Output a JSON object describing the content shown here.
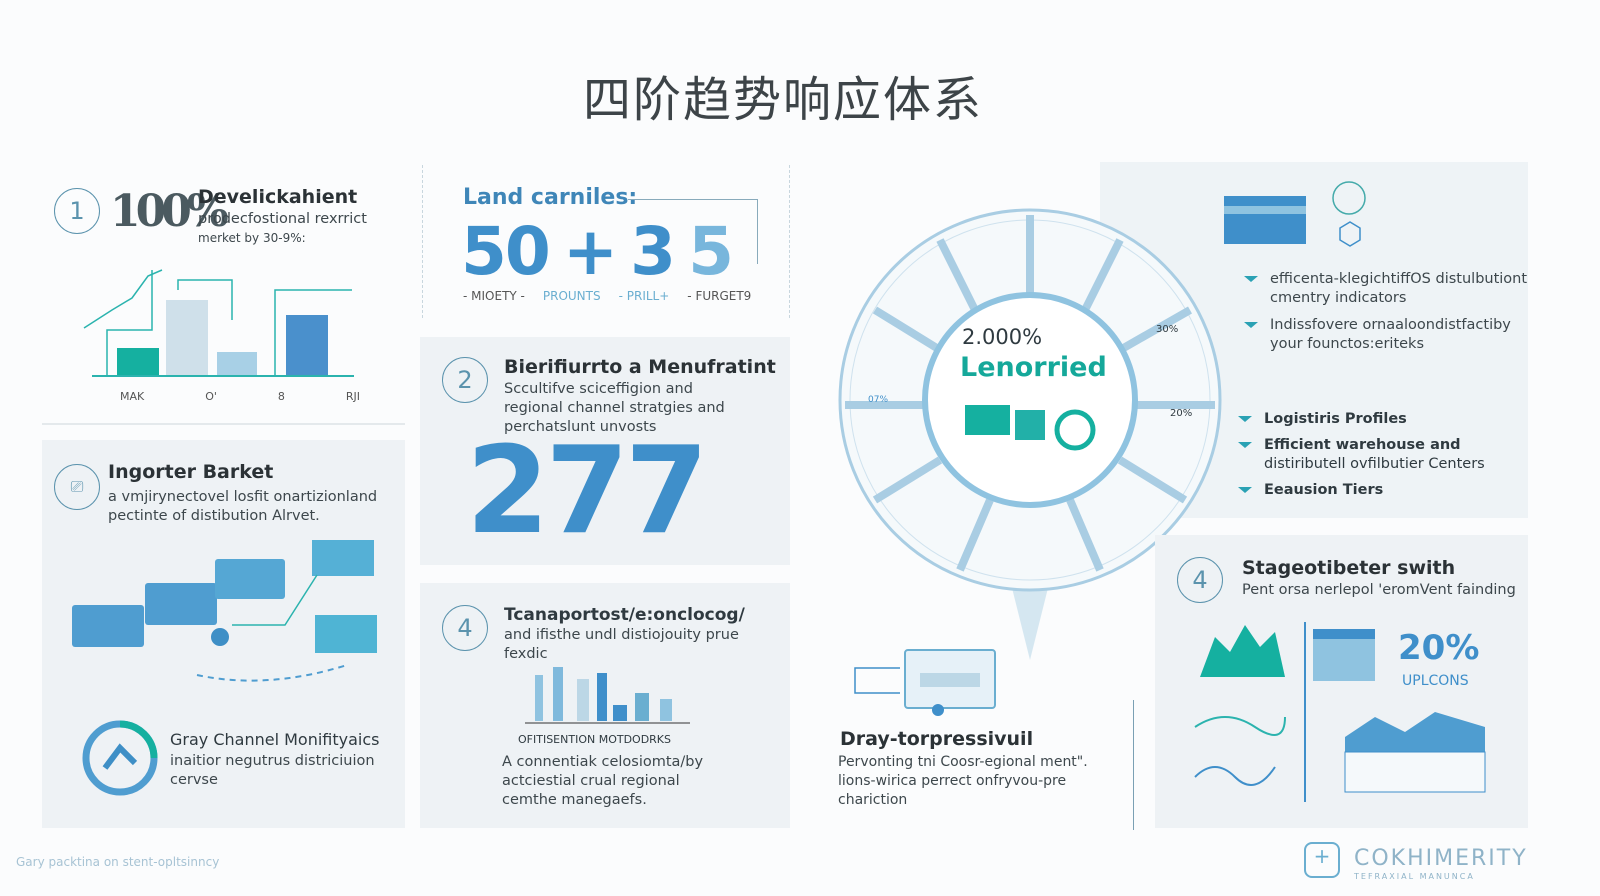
{
  "title": "四阶趋势响应体系",
  "section1": {
    "number": "1",
    "stat": "100%",
    "heading": "Develickahient",
    "desc1": "prodecfostional rexrrict",
    "desc2": "merket by 30-9%:",
    "chart_labels": [
      "MAK",
      "O'",
      "8",
      "RJI"
    ]
  },
  "stats": {
    "label": "Land carniles:",
    "values": [
      "50",
      "+",
      "3",
      "5"
    ],
    "captions": [
      "- MIOETY -",
      "PROUNTS",
      "- PRILL+",
      "- FURGET9"
    ]
  },
  "section2": {
    "number": "2",
    "heading": "Bierifiurrto a Menufratint",
    "desc": [
      "Sccultifve sciceffigion and",
      "regional channel stratgies and",
      "perchatslunt unvosts"
    ],
    "big_number": "277"
  },
  "section_left2": {
    "heading": "Ingorter Barket",
    "desc": [
      "a vmjirynectovel losfit onartizionland",
      "pectinte of distibution Alrvet."
    ],
    "sub_heading": "Gray Channel Monifityaics",
    "sub_desc": [
      "inaitior negutrus districiuion",
      "cervse"
    ]
  },
  "section4": {
    "number": "4",
    "heading": "Tcanaportost/e:onclocog/",
    "desc": [
      "and ifisthe undl distiojouity prue",
      "fexdic"
    ],
    "caption": "OFITISENTION MOTDODRKS",
    "desc2": [
      "A connentiak celosiomta/by",
      "actciestial crual regional",
      "cemthe manegaefs."
    ]
  },
  "center": {
    "percent": "2.000%",
    "label": "Lenorried",
    "ring_labels": [
      "30%",
      "20%",
      "07%"
    ]
  },
  "center_bottom": {
    "heading": "Dray-torpressivuil",
    "desc": [
      "Pervonting tni Coosr-egional ment\".",
      "lions-wirica perrect onfryvou-pre",
      "chariction"
    ]
  },
  "right_top": {
    "bullets": [
      [
        "efficenta-klegichtiffOS distulbutiont",
        "cmentry indicators"
      ],
      [
        "Indissfovere ornaaloondistfactiby",
        "your founctos:eriteks"
      ]
    ],
    "bullets2": [
      [
        "Logistiris Profiles"
      ],
      [
        "Efficient warehouse and",
        "distiributell ovfilbutier Centers"
      ],
      [
        "Eeausion Tiers"
      ]
    ]
  },
  "right_bottom": {
    "number": "4",
    "heading": "Stageotibeter swith",
    "desc": "Pent orsa nerlepol 'eromVent fainding",
    "percent": "20%",
    "percent_label": "UPLCONS"
  },
  "footer": {
    "left": "Gary packtina on stent-opltsinncy",
    "brand": "COKHIMERITY",
    "brand_sub": "TEFRAXIAL MANUNCA"
  },
  "colors": {
    "blue": "#3f8fca",
    "teal": "#1aa39a",
    "light_blue": "#a9cde3",
    "panel": "#eef2f5"
  }
}
